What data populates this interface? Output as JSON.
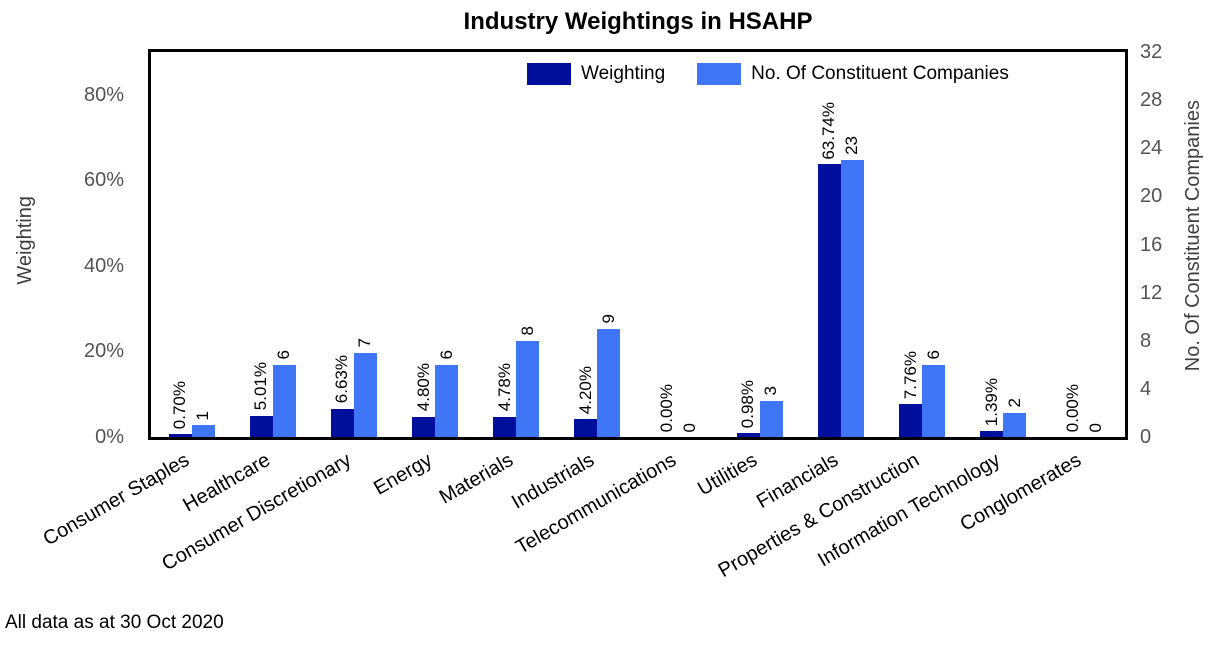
{
  "footer": {
    "note": "All data as at 30 Oct 2020"
  },
  "chart_data": {
    "type": "bar",
    "title": "Industry Weightings in HSAHP",
    "grid": false,
    "legend_position": "top-inside",
    "categories": [
      "Consumer Staples",
      "Healthcare",
      "Consumer Discretionary",
      "Energy",
      "Materials",
      "Industrials",
      "Telecommunications",
      "Utilities",
      "Financials",
      "Properties & Construction",
      "Information Technology",
      "Conglomerates"
    ],
    "series": [
      {
        "name": "Weighting",
        "axis": "left",
        "color": "#000f9c",
        "values": [
          0.7,
          5.01,
          6.63,
          4.8,
          4.78,
          4.2,
          0.0,
          0.98,
          63.74,
          7.76,
          1.39,
          0.0
        ],
        "labels": [
          "0.70%",
          "5.01%",
          "6.63%",
          "4.80%",
          "4.78%",
          "4.20%",
          "0.00%",
          "0.98%",
          "63.74%",
          "7.76%",
          "1.39%",
          "0.00%"
        ]
      },
      {
        "name": "No. Of Constituent Companies",
        "axis": "right",
        "color": "#3e76f7",
        "values": [
          1,
          6,
          7,
          6,
          8,
          9,
          0,
          3,
          23,
          6,
          2,
          0
        ],
        "labels": [
          "1",
          "6",
          "7",
          "6",
          "8",
          "9",
          "0",
          "3",
          "23",
          "6",
          "2",
          "0"
        ]
      }
    ],
    "left_axis": {
      "label": "Weighting",
      "max": 90,
      "ticks": [
        "0%",
        "20%",
        "40%",
        "60%",
        "80%"
      ],
      "tick_values": [
        0,
        20,
        40,
        60,
        80
      ]
    },
    "right_axis": {
      "label": "No. Of Constituent Companies",
      "max": 32,
      "ticks": [
        "0",
        "4",
        "8",
        "12",
        "16",
        "20",
        "24",
        "28",
        "32"
      ],
      "tick_values": [
        0,
        4,
        8,
        12,
        16,
        20,
        24,
        28,
        32
      ]
    }
  }
}
